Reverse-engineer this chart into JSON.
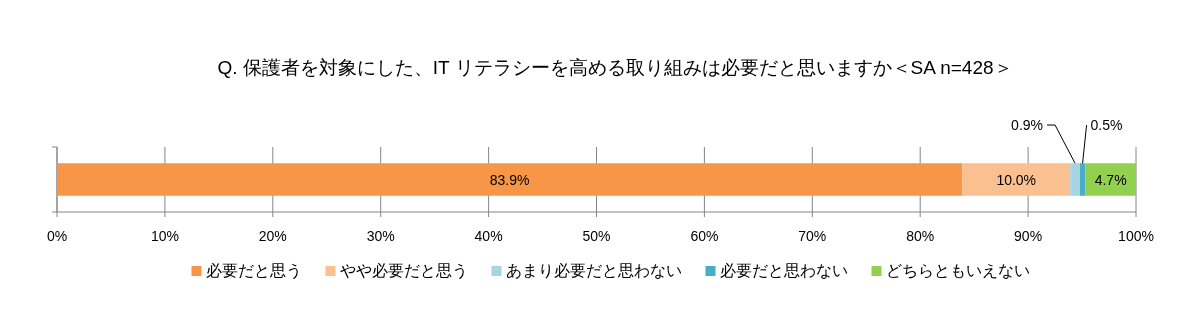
{
  "chart_data": {
    "type": "bar",
    "orientation": "horizontal",
    "stacked": true,
    "title": "Q. 保護者を対象にした、IT リテラシーを高める取り組みは必要だと思いますか＜SA n=428＞",
    "categories": [
      null
    ],
    "series": [
      {
        "name": "必要だと思う",
        "color": "#f79646",
        "values": [
          83.9
        ],
        "value_labels": [
          "83.9%"
        ]
      },
      {
        "name": "やや必要だと思う",
        "color": "#fac090",
        "values": [
          10.0
        ],
        "value_labels": [
          "10.0%"
        ]
      },
      {
        "name": "あまり必要だと思わない",
        "color": "#a5d5e2",
        "values": [
          0.9
        ],
        "value_labels": [
          "0.9%"
        ]
      },
      {
        "name": "必要だと思わない",
        "color": "#4bacc6",
        "values": [
          0.5
        ],
        "value_labels": [
          "0.5%"
        ]
      },
      {
        "name": "どちらともいえない",
        "color": "#92d050",
        "values": [
          4.7
        ],
        "value_labels": [
          "4.7%"
        ]
      }
    ],
    "xlim": [
      0,
      100
    ],
    "xticks": [
      {
        "value": 0,
        "label": "0%"
      },
      {
        "value": 10,
        "label": "10%"
      },
      {
        "value": 20,
        "label": "20%"
      },
      {
        "value": 30,
        "label": "30%"
      },
      {
        "value": 40,
        "label": "40%"
      },
      {
        "value": 50,
        "label": "50%"
      },
      {
        "value": 60,
        "label": "60%"
      },
      {
        "value": 70,
        "label": "70%"
      },
      {
        "value": 80,
        "label": "80%"
      },
      {
        "value": 90,
        "label": "90%"
      },
      {
        "value": 100,
        "label": "100%"
      }
    ],
    "grid": "x",
    "legend": "bottom"
  }
}
